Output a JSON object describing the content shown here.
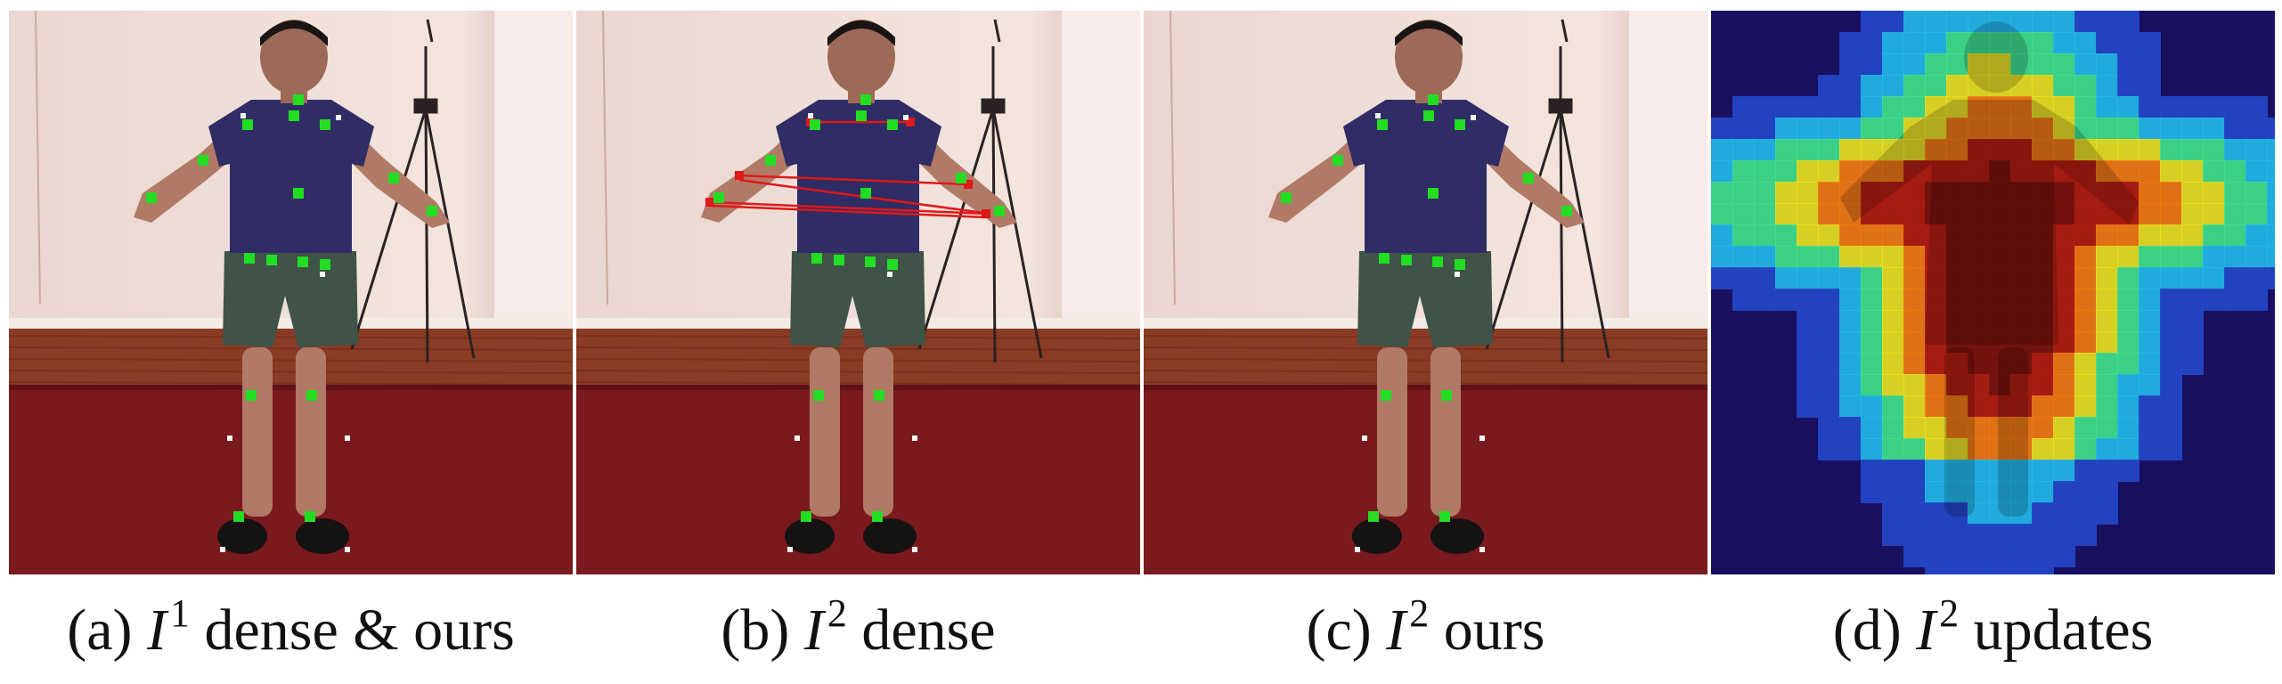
{
  "panels": [
    {
      "id": "a",
      "caption": {
        "prefix": "(a) ",
        "symbol": "I",
        "superscript": "1",
        "suffix": " dense & ours"
      },
      "kind": "keypoints",
      "marker_color": "#22dd22",
      "show_matches": false
    },
    {
      "id": "b",
      "caption": {
        "prefix": "(b) ",
        "symbol": "I",
        "superscript": "2",
        "suffix": " dense"
      },
      "kind": "keypoints",
      "marker_color": "#22dd22",
      "match_color": "#e01818",
      "show_matches": true
    },
    {
      "id": "c",
      "caption": {
        "prefix": "(c) ",
        "symbol": "I",
        "superscript": "2",
        "suffix": " ours"
      },
      "kind": "keypoints",
      "marker_color": "#22dd22",
      "show_matches": false
    },
    {
      "id": "d",
      "caption": {
        "prefix": "(d) ",
        "symbol": "I",
        "superscript": "2",
        "suffix": " updates"
      },
      "kind": "heatmap",
      "colormap": [
        "#1a1060",
        "#2346c8",
        "#22b8e8",
        "#3fe08a",
        "#e8e020",
        "#f07a10",
        "#b01c0c",
        "#7a1208"
      ]
    }
  ]
}
